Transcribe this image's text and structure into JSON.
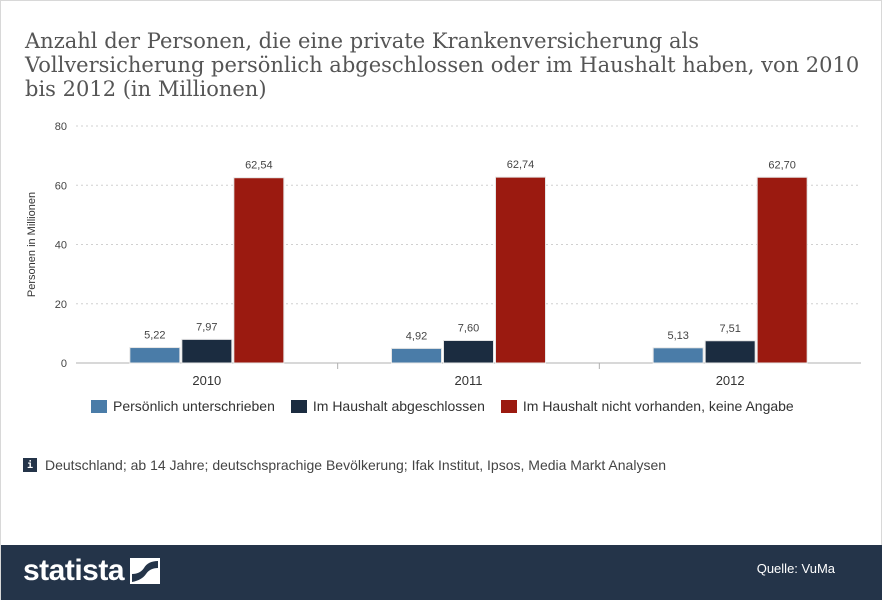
{
  "title": "Anzahl der Personen, die eine private Krankenversicherung als Vollversicherung persönlich abgeschlossen oder im Haushalt haben, von 2010 bis 2012 (in Millionen)",
  "note": {
    "icon": "info-icon",
    "icon_glyph": "i",
    "text": "Deutschland; ab 14 Jahre; deutschsprachige Bevölkerung; Ifak Institut, Ipsos, Media Markt Analysen"
  },
  "footer": {
    "logo_text": "statista",
    "source": "Quelle: VuMa"
  },
  "colors": {
    "series": [
      "#4a7ca8",
      "#1b2c40",
      "#9b1a10"
    ],
    "footer_bg": "#243449"
  },
  "chart_data": {
    "type": "bar",
    "categories": [
      "2010",
      "2011",
      "2012"
    ],
    "series": [
      {
        "name": "Persönlich unterschrieben",
        "values": [
          5.22,
          4.92,
          5.13
        ],
        "labels": [
          "5,22",
          "4,92",
          "5,13"
        ]
      },
      {
        "name": "Im Haushalt abgeschlossen",
        "values": [
          7.97,
          7.6,
          7.51
        ],
        "labels": [
          "7,97",
          "7,60",
          "7,51"
        ]
      },
      {
        "name": "Im Haushalt nicht vorhanden, keine Angabe",
        "values": [
          62.54,
          62.74,
          62.7
        ],
        "labels": [
          "62,54",
          "62,74",
          "62,70"
        ]
      }
    ],
    "ylabel": "Personen in Millionen",
    "ylim": [
      0,
      80
    ],
    "yticks": [
      "0",
      "20",
      "40",
      "60",
      "80"
    ],
    "grid": true,
    "legend": "bottom"
  }
}
